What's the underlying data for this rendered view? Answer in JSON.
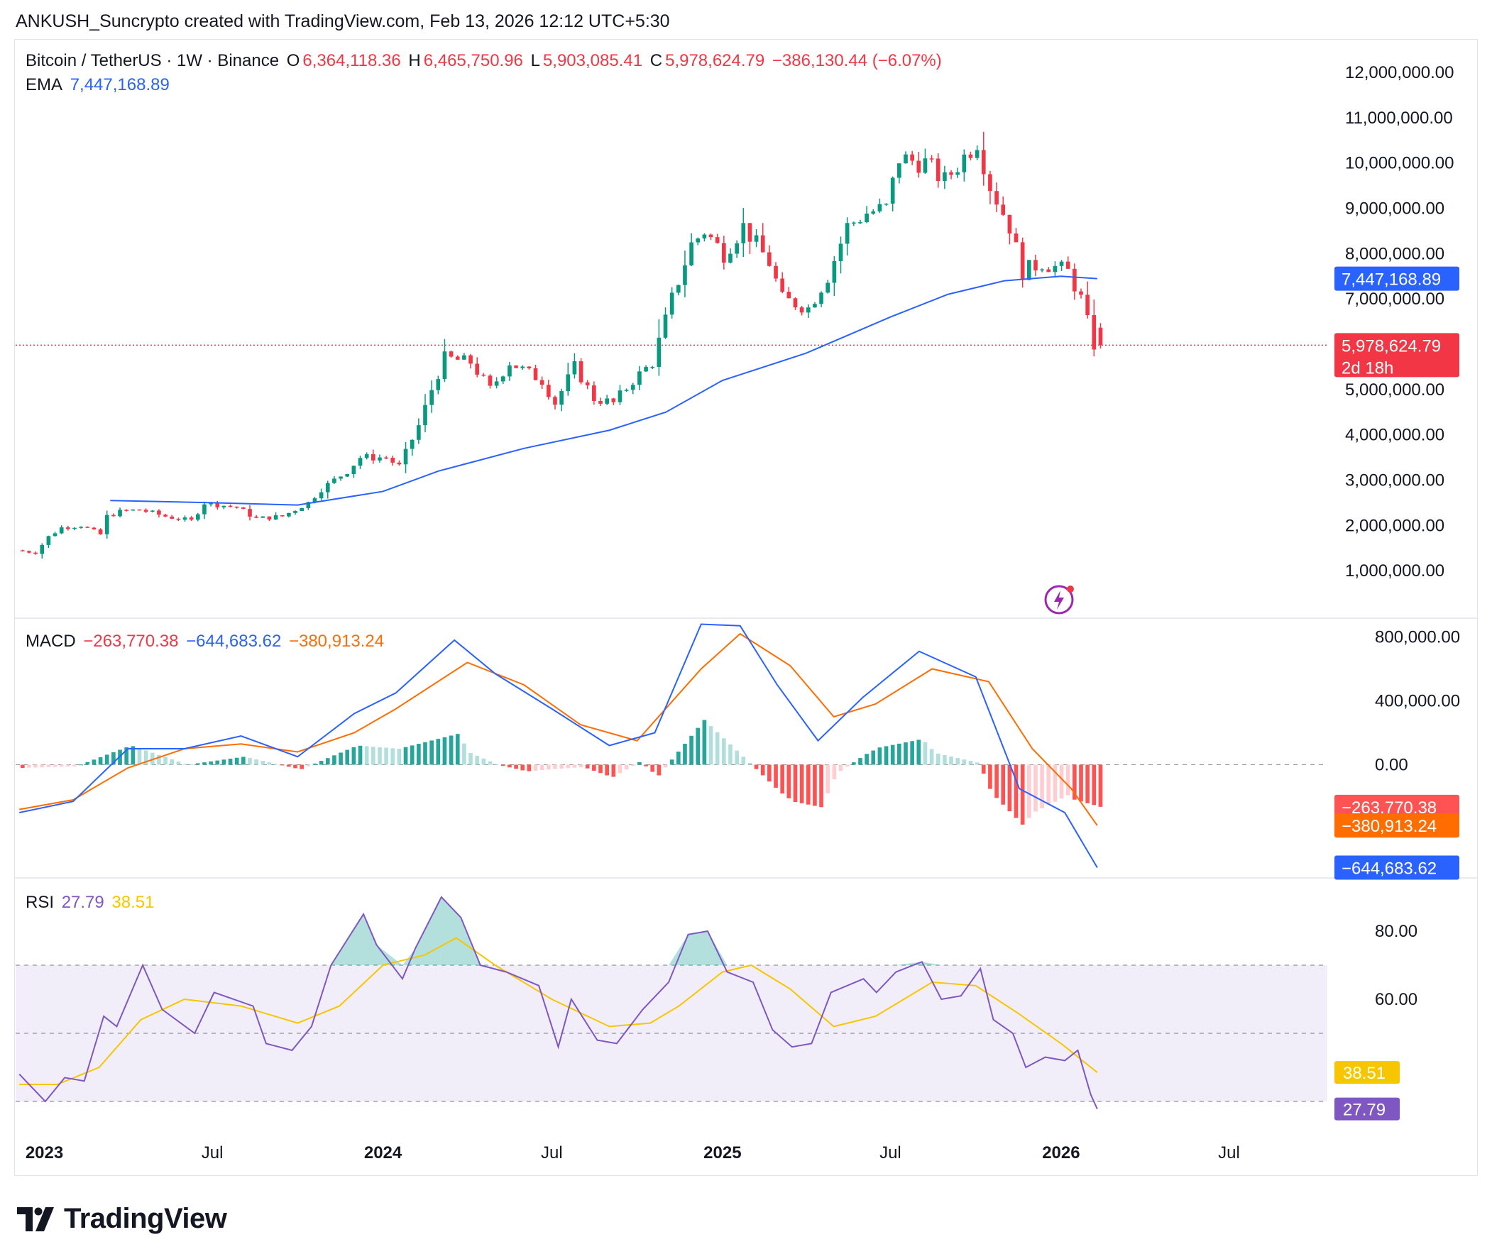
{
  "attribution": "ANKUSH_Suncrypto created with TradingView.com, Feb 13, 2026 12:12 UTC+5:30",
  "brand": "TradingView",
  "colors": {
    "up": "#089981",
    "down": "#f23645",
    "ema": "#2962ff",
    "macd": "#2962ff",
    "signal": "#ff6d00",
    "rsi": "#7e57c2",
    "rsi_ma": "#f7c600"
  },
  "main_legend": {
    "symbol": "Bitcoin / TetherUS · 1W · Binance",
    "o_label": "O",
    "o": "6,364,118.36",
    "h_label": "H",
    "h": "6,465,750.96",
    "l_label": "L",
    "l": "5,903,085.41",
    "c_label": "C",
    "c": "5,978,624.79",
    "change": "−386,130.44 (−6.07%)",
    "ema_label": "EMA",
    "ema_value": "7,447,168.89"
  },
  "macd_legend": {
    "label": "MACD",
    "hist": "−263,770.38",
    "macd": "−644,683.62",
    "signal": "−380,913.24"
  },
  "rsi_legend": {
    "label": "RSI",
    "rsi": "27.79",
    "ma": "38.51"
  },
  "badges": {
    "ema": "7,447,168.89",
    "price": "5,978,624.79",
    "countdown": "2d 18h",
    "hist": "−263,770.38",
    "signal": "−380,913.24",
    "macd": "−644,683.62",
    "rsi_ma": "38.51",
    "rsi": "27.79"
  },
  "chart_data": [
    {
      "type": "candlestick",
      "title": "Bitcoin / TetherUS · 1W · Binance",
      "y_ticks": [
        "12,000,000.00",
        "11,000,000.00",
        "10,000,000.00",
        "9,000,000.00",
        "8,000,000.00",
        "7,000,000.00",
        "5,000,000.00",
        "4,000,000.00",
        "3,000,000.00",
        "2,000,000.00",
        "1,000,000.00"
      ],
      "ylim": [
        0,
        12500000
      ],
      "x_ticks": [
        "2023",
        "Jul",
        "2024",
        "Jul",
        "2025",
        "Jul",
        "2026",
        "Jul"
      ],
      "x_range": [
        "2022-12-01",
        "2026-10-15"
      ],
      "price_path": [
        [
          "2022-12-05",
          1450000
        ],
        [
          "2022-12-26",
          1400000
        ],
        [
          "2023-01-09",
          1750000
        ],
        [
          "2023-01-23",
          1950000
        ],
        [
          "2023-02-13",
          2000000
        ],
        [
          "2023-03-06",
          1800000
        ],
        [
          "2023-03-13",
          2200000
        ],
        [
          "2023-03-27",
          2300000
        ],
        [
          "2023-04-17",
          2350000
        ],
        [
          "2023-05-15",
          2200000
        ],
        [
          "2023-06-12",
          2100000
        ],
        [
          "2023-06-26",
          2500000
        ],
        [
          "2023-07-31",
          2400000
        ],
        [
          "2023-08-21",
          2150000
        ],
        [
          "2023-09-18",
          2200000
        ],
        [
          "2023-10-16",
          2500000
        ],
        [
          "2023-10-30",
          2800000
        ],
        [
          "2023-11-27",
          3200000
        ],
        [
          "2023-12-11",
          3500000
        ],
        [
          "2024-01-08",
          3500000
        ],
        [
          "2024-01-22",
          3300000
        ],
        [
          "2024-02-12",
          4200000
        ],
        [
          "2024-02-26",
          5000000
        ],
        [
          "2024-03-11",
          5700000
        ],
        [
          "2024-04-08",
          5600000
        ],
        [
          "2024-04-29",
          5000000
        ],
        [
          "2024-05-20",
          5600000
        ],
        [
          "2024-06-24",
          5200000
        ],
        [
          "2024-07-08",
          4700000
        ],
        [
          "2024-07-29",
          5500000
        ],
        [
          "2024-08-19",
          4800000
        ],
        [
          "2024-09-09",
          4700000
        ],
        [
          "2024-09-30",
          5200000
        ],
        [
          "2024-10-21",
          5600000
        ],
        [
          "2024-11-11",
          7000000
        ],
        [
          "2024-12-02",
          8200000
        ],
        [
          "2024-12-16",
          8500000
        ],
        [
          "2025-01-06",
          8000000
        ],
        [
          "2025-01-27",
          8600000
        ],
        [
          "2025-02-24",
          7800000
        ],
        [
          "2025-03-10",
          7000000
        ],
        [
          "2025-04-07",
          6800000
        ],
        [
          "2025-04-28",
          7500000
        ],
        [
          "2025-05-19",
          8600000
        ],
        [
          "2025-06-09",
          8900000
        ],
        [
          "2025-06-30",
          9000000
        ],
        [
          "2025-07-14",
          10100000
        ],
        [
          "2025-08-11",
          10000000
        ],
        [
          "2025-09-01",
          9600000
        ],
        [
          "2025-10-06",
          10500000
        ],
        [
          "2025-10-20",
          9500000
        ],
        [
          "2025-11-10",
          8600000
        ],
        [
          "2025-11-24",
          7600000
        ],
        [
          "2025-12-15",
          7800000
        ],
        [
          "2026-01-12",
          7600000
        ],
        [
          "2026-01-26",
          7000000
        ],
        [
          "2026-02-09",
          5978624.79
        ]
      ],
      "ema": [
        [
          "2023-03-13",
          2550000
        ],
        [
          "2023-07-01",
          2500000
        ],
        [
          "2023-10-01",
          2450000
        ],
        [
          "2024-01-01",
          2750000
        ],
        [
          "2024-03-01",
          3200000
        ],
        [
          "2024-06-01",
          3700000
        ],
        [
          "2024-09-01",
          4100000
        ],
        [
          "2024-11-01",
          4500000
        ],
        [
          "2025-01-01",
          5200000
        ],
        [
          "2025-04-01",
          5800000
        ],
        [
          "2025-07-01",
          6600000
        ],
        [
          "2025-09-01",
          7100000
        ],
        [
          "2025-11-01",
          7400000
        ],
        [
          "2026-01-01",
          7500000
        ],
        [
          "2026-02-09",
          7447168.89
        ]
      ],
      "last": {
        "open": 6364118.36,
        "high": 6465750.96,
        "low": 5903085.41,
        "close": 5978624.79
      }
    },
    {
      "type": "line",
      "title": "MACD",
      "y_ticks": [
        "800,000.00",
        "400,000.00",
        "0.00"
      ],
      "ylim": [
        -700000,
        900000
      ],
      "macd": [
        [
          "2022-12-05",
          -300000
        ],
        [
          "2023-02-01",
          -230000
        ],
        [
          "2023-04-01",
          100000
        ],
        [
          "2023-06-01",
          100000
        ],
        [
          "2023-08-01",
          180000
        ],
        [
          "2023-10-01",
          50000
        ],
        [
          "2023-12-01",
          320000
        ],
        [
          "2024-01-15",
          450000
        ],
        [
          "2024-03-18",
          780000
        ],
        [
          "2024-05-01",
          570000
        ],
        [
          "2024-07-01",
          350000
        ],
        [
          "2024-09-01",
          120000
        ],
        [
          "2024-10-20",
          200000
        ],
        [
          "2024-12-09",
          880000
        ],
        [
          "2025-01-20",
          870000
        ],
        [
          "2025-03-01",
          500000
        ],
        [
          "2025-04-14",
          150000
        ],
        [
          "2025-06-01",
          420000
        ],
        [
          "2025-08-01",
          710000
        ],
        [
          "2025-10-01",
          550000
        ],
        [
          "2025-11-17",
          -150000
        ],
        [
          "2026-01-05",
          -300000
        ],
        [
          "2026-02-09",
          -644683.62
        ]
      ],
      "signal": [
        [
          "2022-12-05",
          -280000
        ],
        [
          "2023-02-01",
          -220000
        ],
        [
          "2023-04-01",
          -20000
        ],
        [
          "2023-06-01",
          100000
        ],
        [
          "2023-08-01",
          130000
        ],
        [
          "2023-10-01",
          80000
        ],
        [
          "2023-12-01",
          200000
        ],
        [
          "2024-01-15",
          350000
        ],
        [
          "2024-04-01",
          640000
        ],
        [
          "2024-06-01",
          500000
        ],
        [
          "2024-08-01",
          250000
        ],
        [
          "2024-10-01",
          150000
        ],
        [
          "2024-12-09",
          600000
        ],
        [
          "2025-01-20",
          820000
        ],
        [
          "2025-03-15",
          620000
        ],
        [
          "2025-05-01",
          300000
        ],
        [
          "2025-06-15",
          380000
        ],
        [
          "2025-08-15",
          600000
        ],
        [
          "2025-10-15",
          520000
        ],
        [
          "2025-12-01",
          100000
        ],
        [
          "2026-01-12",
          -150000
        ],
        [
          "2026-02-09",
          -380913.24
        ]
      ],
      "histogram_last": -263770.38
    },
    {
      "type": "line",
      "title": "RSI",
      "y_ticks": [
        "80.00",
        "60.00"
      ],
      "ylim": [
        20,
        95
      ],
      "rsi": [
        [
          "2022-12-05",
          38
        ],
        [
          "2023-01-02",
          30
        ],
        [
          "2023-01-23",
          37
        ],
        [
          "2023-02-13",
          36
        ],
        [
          "2023-03-06",
          55
        ],
        [
          "2023-03-20",
          52
        ],
        [
          "2023-04-17",
          70
        ],
        [
          "2023-05-08",
          57
        ],
        [
          "2023-06-12",
          50
        ],
        [
          "2023-07-03",
          62
        ],
        [
          "2023-08-14",
          58
        ],
        [
          "2023-08-28",
          47
        ],
        [
          "2023-09-25",
          45
        ],
        [
          "2023-10-16",
          52
        ],
        [
          "2023-11-06",
          70
        ],
        [
          "2023-12-11",
          85
        ],
        [
          "2023-12-25",
          76
        ],
        [
          "2024-01-22",
          66
        ],
        [
          "2024-02-05",
          75
        ],
        [
          "2024-03-04",
          90
        ],
        [
          "2024-03-25",
          84
        ],
        [
          "2024-04-15",
          70
        ],
        [
          "2024-05-13",
          68
        ],
        [
          "2024-06-17",
          64
        ],
        [
          "2024-07-08",
          46
        ],
        [
          "2024-07-22",
          60
        ],
        [
          "2024-08-19",
          48
        ],
        [
          "2024-09-09",
          47
        ],
        [
          "2024-10-07",
          57
        ],
        [
          "2024-11-04",
          65
        ],
        [
          "2024-11-25",
          79
        ],
        [
          "2024-12-16",
          80
        ],
        [
          "2025-01-06",
          68
        ],
        [
          "2025-02-03",
          65
        ],
        [
          "2025-02-24",
          51
        ],
        [
          "2025-03-17",
          46
        ],
        [
          "2025-04-07",
          47
        ],
        [
          "2025-04-28",
          62
        ],
        [
          "2025-06-02",
          66
        ],
        [
          "2025-06-16",
          62
        ],
        [
          "2025-07-07",
          68
        ],
        [
          "2025-08-04",
          71
        ],
        [
          "2025-08-25",
          60
        ],
        [
          "2025-09-15",
          61
        ],
        [
          "2025-10-06",
          69
        ],
        [
          "2025-10-20",
          54
        ],
        [
          "2025-11-10",
          50
        ],
        [
          "2025-11-24",
          40
        ],
        [
          "2025-12-15",
          43
        ],
        [
          "2026-01-05",
          42
        ],
        [
          "2026-01-19",
          45
        ],
        [
          "2026-02-02",
          32
        ],
        [
          "2026-02-09",
          27.79
        ]
      ],
      "rsi_ma": [
        [
          "2022-12-05",
          35
        ],
        [
          "2023-01-15",
          35
        ],
        [
          "2023-03-01",
          40
        ],
        [
          "2023-04-15",
          54
        ],
        [
          "2023-06-01",
          60
        ],
        [
          "2023-08-01",
          58
        ],
        [
          "2023-10-01",
          53
        ],
        [
          "2023-11-15",
          58
        ],
        [
          "2024-01-01",
          70
        ],
        [
          "2024-02-15",
          73
        ],
        [
          "2024-03-20",
          78
        ],
        [
          "2024-05-01",
          70
        ],
        [
          "2024-07-01",
          60
        ],
        [
          "2024-09-01",
          52
        ],
        [
          "2024-10-15",
          53
        ],
        [
          "2024-11-15",
          58
        ],
        [
          "2025-01-01",
          68
        ],
        [
          "2025-02-01",
          70
        ],
        [
          "2025-03-15",
          63
        ],
        [
          "2025-05-01",
          52
        ],
        [
          "2025-06-15",
          55
        ],
        [
          "2025-08-15",
          65
        ],
        [
          "2025-10-01",
          64
        ],
        [
          "2025-11-15",
          56
        ],
        [
          "2026-01-01",
          47
        ],
        [
          "2026-02-09",
          38.51
        ]
      ],
      "bands": [
        70,
        50,
        30
      ]
    }
  ]
}
